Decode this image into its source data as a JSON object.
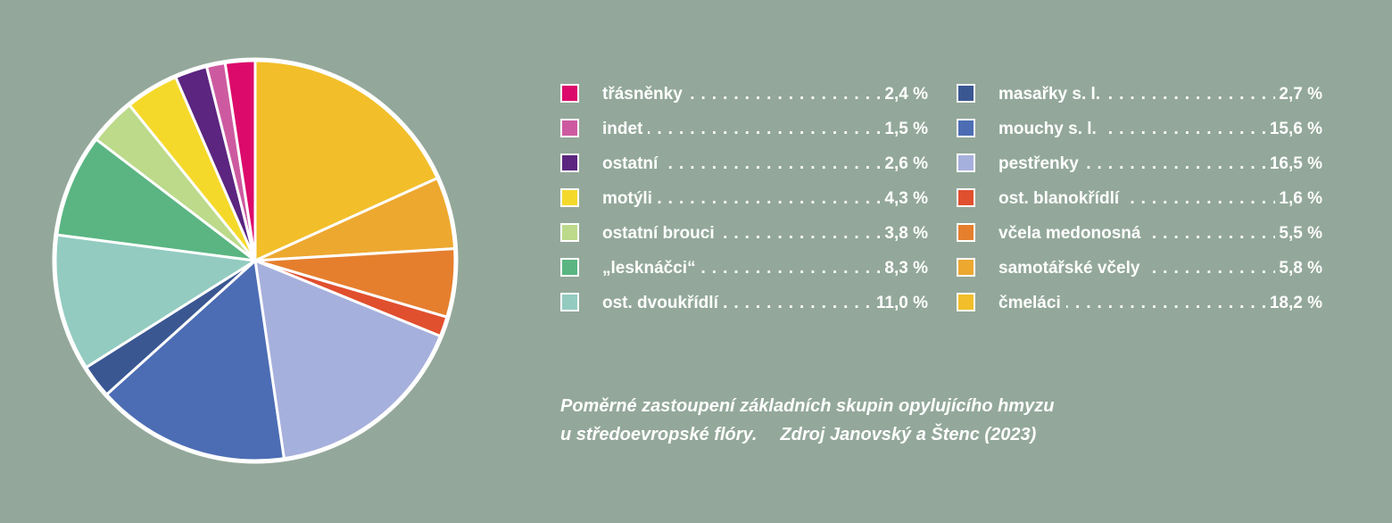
{
  "chart_data": {
    "type": "pie",
    "title": "",
    "slices": [
      {
        "label": "čmeláci",
        "value": 18.2,
        "value_label": "18,2 %",
        "color": "#f2bf2a"
      },
      {
        "label": "samotářské včely",
        "value": 5.8,
        "value_label": "5,8 %",
        "color": "#eda830"
      },
      {
        "label": "včela medonosná",
        "value": 5.5,
        "value_label": ",5,5 %",
        "color": "#e57f2e"
      },
      {
        "label": "ost. blanokřídlí",
        "value": 1.6,
        "value_label": "1,6 %",
        "color": "#e04f2e"
      },
      {
        "label": "pestřenky",
        "value": 16.5,
        "value_label": "16,5 %",
        "color": "#a6b0dc"
      },
      {
        "label": "mouchy s. l.",
        "value": 15.6,
        "value_label": "15,6 %",
        "color": "#4c6db4"
      },
      {
        "label": "masařky s. l.",
        "value": 2.7,
        "value_label": "2,7 %",
        "color": "#3a5792"
      },
      {
        "label": "ost. dvoukřídlí",
        "value": 11.0,
        "value_label": "11,0 %",
        "color": "#93cbc0"
      },
      {
        "label": "„lesknáčci“",
        "value": 8.3,
        "value_label": "8,3 %",
        "color": "#5ab582"
      },
      {
        "label": "ostatní brouci",
        "value": 3.8,
        "value_label": "3,8 %",
        "color": "#bcda8a"
      },
      {
        "label": "motýli",
        "value": 4.3,
        "value_label": "4,3 %",
        "color": "#f5d92a"
      },
      {
        "label": "ostatní",
        "value": 2.6,
        "value_label": "2,6 %",
        "color": "#5b2580"
      },
      {
        "label": "indet",
        "value": 1.5,
        "value_label": "1,5 %",
        "color": "#cd5aa0"
      },
      {
        "label": "třásněnky",
        "value": 2.4,
        "value_label": "2,4 %",
        "color": "#dc0a6b"
      }
    ],
    "start_angle_deg": 0,
    "direction": "clockwise",
    "slice_border_color": "#ffffff"
  },
  "legend": {
    "left": [
      {
        "label": "třásněnky",
        "value": "2,4 %",
        "color": "#dc0a6b"
      },
      {
        "label": "indet",
        "value": "1,5 %",
        "color": "#cd5aa0"
      },
      {
        "label": "ostatní",
        "value": "2,6 %",
        "color": "#5b2580"
      },
      {
        "label": "motýli",
        "value": "4,3 %",
        "color": "#f5d92a"
      },
      {
        "label": "ostatní brouci",
        "value": "3,8 %",
        "color": "#bcda8a"
      },
      {
        "label": "„lesknáčci“",
        "value": "8,3 %",
        "color": "#5ab582"
      },
      {
        "label": "ost. dvoukřídlí",
        "value": "11,0 %",
        "color": "#93cbc0"
      }
    ],
    "right": [
      {
        "label": "masařky s. l.",
        "value": "2,7 %",
        "color": "#3a5792"
      },
      {
        "label": "mouchy s. l.",
        "value": "15,6 %",
        "color": "#4c6db4"
      },
      {
        "label": "pestřenky",
        "value": "16,5 %",
        "color": "#a6b0dc"
      },
      {
        "label": "ost. blanokřídlí",
        "value": "1,6 %",
        "color": "#e04f2e"
      },
      {
        "label": "včela medonosná",
        "value": "5,5 %",
        "color": "#e57f2e"
      },
      {
        "label": "samotářské včely",
        "value": "5,8 %",
        "color": "#eda830"
      },
      {
        "label": "čmeláci",
        "value": "18,2 %",
        "color": "#f2bf2a"
      }
    ]
  },
  "caption": {
    "line1": "Poměrné zastoupení základních skupin opylujícího hmyzu",
    "line2": "u středoevropské flóry.",
    "source": "Zdroj Janovský a Štenc (2023)"
  },
  "colors": {
    "background": "#93a89a",
    "text": "#ffffff"
  }
}
